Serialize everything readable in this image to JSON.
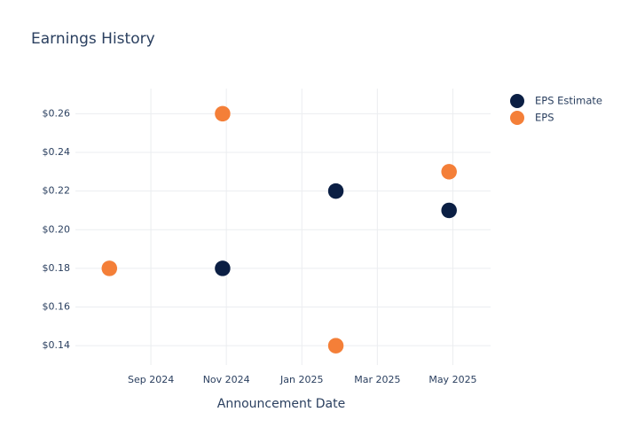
{
  "chart_data": {
    "type": "scatter",
    "title": "Earnings History",
    "x_label": "Announcement Date",
    "x": [
      "2024-07",
      "2024-10",
      "2025-01",
      "2025-04"
    ],
    "series": [
      {
        "name": "EPS Estimate",
        "color": "#0b1f44",
        "values": [
          0.18,
          0.18,
          0.22,
          0.21
        ]
      },
      {
        "name": "EPS",
        "color": "#f47f38",
        "values": [
          0.18,
          0.26,
          0.14,
          0.23
        ]
      }
    ],
    "xlim": [
      "2024-07",
      "2025-06"
    ],
    "xticks": [
      {
        "value": "2024-09",
        "label": "Sep 2024"
      },
      {
        "value": "2024-11",
        "label": "Nov 2024"
      },
      {
        "value": "2025-01",
        "label": "Jan 2025"
      },
      {
        "value": "2025-03",
        "label": "Mar 2025"
      },
      {
        "value": "2025-05",
        "label": "May 2025"
      }
    ],
    "ylim": [
      0.13,
      0.273
    ],
    "yticks": [
      {
        "value": 0.14,
        "label": "$0.14"
      },
      {
        "value": 0.16,
        "label": "$0.16"
      },
      {
        "value": 0.18,
        "label": "$0.18"
      },
      {
        "value": 0.2,
        "label": "$0.20"
      },
      {
        "value": 0.22,
        "label": "$0.22"
      },
      {
        "value": 0.24,
        "label": "$0.24"
      },
      {
        "value": 0.26,
        "label": "$0.26"
      }
    ],
    "grid": true,
    "legend": "top-right"
  }
}
